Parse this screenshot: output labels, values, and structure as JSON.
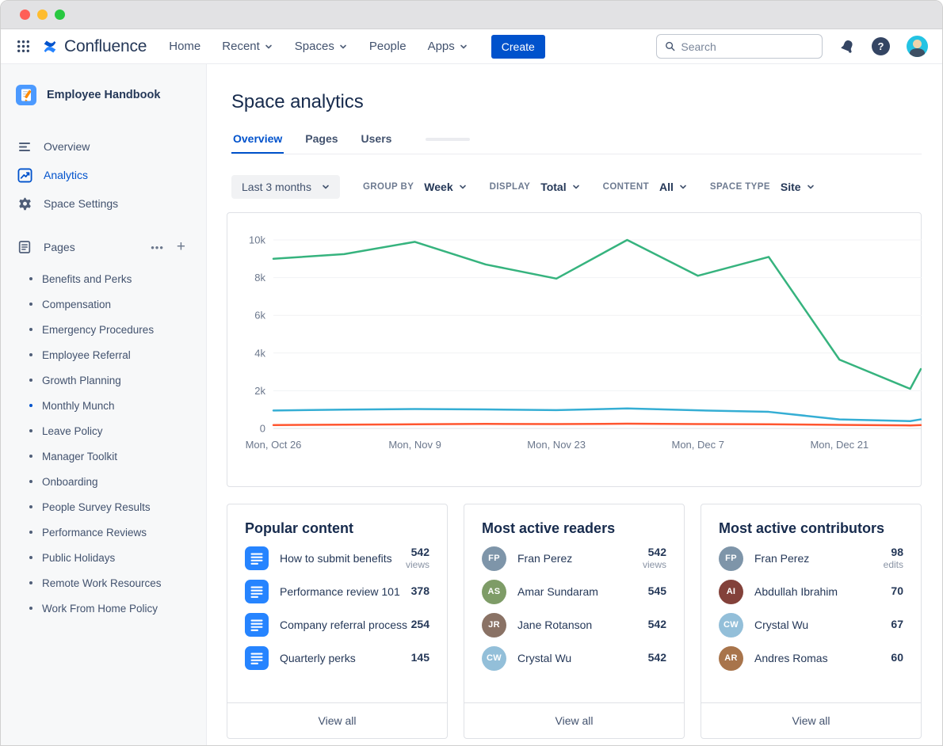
{
  "window": {
    "traffic_light_colors": [
      "#FF5F57",
      "#FEBC2E",
      "#28C840"
    ]
  },
  "nav": {
    "brand": "Confluence",
    "items": [
      {
        "label": "Home"
      },
      {
        "label": "Recent"
      },
      {
        "label": "Spaces"
      },
      {
        "label": "People"
      },
      {
        "label": "Apps"
      }
    ],
    "create_label": "Create",
    "search": {
      "placeholder": "Search"
    },
    "accent_color": "#0052CC"
  },
  "sidebar": {
    "space_name": "Employee Handbook",
    "menu": [
      {
        "label": "Overview",
        "active": false
      },
      {
        "label": "Analytics",
        "active": true
      },
      {
        "label": "Space Settings",
        "active": false
      }
    ],
    "pages_header": "Pages",
    "pages": [
      {
        "label": "Benefits and Perks",
        "bullet_color": "#505F79"
      },
      {
        "label": "Compensation",
        "bullet_color": "#505F79"
      },
      {
        "label": "Emergency Procedures",
        "bullet_color": "#505F79"
      },
      {
        "label": "Employee Referral",
        "bullet_color": "#505F79"
      },
      {
        "label": "Growth Planning",
        "bullet_color": "#505F79"
      },
      {
        "label": "Monthly Munch",
        "bullet_color": "#0052CC"
      },
      {
        "label": "Leave Policy",
        "bullet_color": "#505F79"
      },
      {
        "label": "Manager Toolkit",
        "bullet_color": "#505F79"
      },
      {
        "label": "Onboarding",
        "bullet_color": "#505F79"
      },
      {
        "label": "People Survey Results",
        "bullet_color": "#505F79"
      },
      {
        "label": "Performance Reviews",
        "bullet_color": "#505F79"
      },
      {
        "label": "Public Holidays",
        "bullet_color": "#505F79"
      },
      {
        "label": "Remote Work Resources",
        "bullet_color": "#505F79"
      },
      {
        "label": "Work From Home Policy",
        "bullet_color": "#505F79"
      }
    ]
  },
  "main": {
    "title": "Space analytics",
    "tabs": [
      {
        "label": "Overview",
        "active": true
      },
      {
        "label": "Pages",
        "active": false
      },
      {
        "label": "Users",
        "active": false
      }
    ],
    "filters": {
      "date_range": "Last 3 months",
      "controls": [
        {
          "label": "GROUP BY",
          "value": "Week"
        },
        {
          "label": "DISPLAY",
          "value": "Total"
        },
        {
          "label": "CONTENT",
          "value": "All"
        },
        {
          "label": "SPACE TYPE",
          "value": "Site"
        }
      ]
    }
  },
  "chart_data": {
    "type": "line",
    "title": "",
    "grid": true,
    "legend_position": "none",
    "ylim": [
      0,
      10000
    ],
    "y_tick_values": [
      0,
      2000,
      4000,
      6000,
      8000,
      10000
    ],
    "y_tick_labels": [
      "0",
      "2k",
      "4k",
      "6k",
      "8k",
      "10k"
    ],
    "x_tick_labels": [
      "Mon, Oct 26",
      "Mon, Nov 9",
      "Mon, Nov 23",
      "Mon, Dec 7",
      "Mon, Dec 21"
    ],
    "x_tick_week_positions": [
      0,
      2,
      4,
      6,
      8
    ],
    "x_week_positions": [
      0,
      1,
      2,
      3,
      4,
      5,
      6,
      7,
      8,
      9,
      9.15
    ],
    "series": [
      {
        "color_name": "green",
        "color": "#36B37E",
        "values": [
          9000,
          9250,
          9900,
          8700,
          7950,
          10000,
          8100,
          9100,
          3650,
          2100,
          3150
        ]
      },
      {
        "color_name": "blue",
        "color": "#35AED4",
        "values": [
          950,
          1000,
          1030,
          1010,
          970,
          1060,
          960,
          880,
          480,
          390,
          480
        ]
      },
      {
        "color_name": "red",
        "color": "#FF5630",
        "values": [
          180,
          200,
          220,
          240,
          230,
          250,
          230,
          220,
          190,
          160,
          180
        ]
      }
    ]
  },
  "cards": [
    {
      "title": "Popular content",
      "footer": "View all",
      "items": [
        {
          "name": "How to submit benefits",
          "value": "542",
          "unit": "views"
        },
        {
          "name": "Performance review 101",
          "value": "378"
        },
        {
          "name": "Company referral process",
          "value": "254"
        },
        {
          "name": "Quarterly perks",
          "value": "145"
        }
      ]
    },
    {
      "title": "Most active readers",
      "footer": "View all",
      "items": [
        {
          "name": "Fran Perez",
          "value": "542",
          "unit": "views",
          "initials": "FP",
          "avatar_color": "#7E95A9"
        },
        {
          "name": "Amar Sundaram",
          "value": "545",
          "initials": "AS",
          "avatar_color": "#7E9C67"
        },
        {
          "name": "Jane Rotanson",
          "value": "542",
          "initials": "JR",
          "avatar_color": "#8A7265"
        },
        {
          "name": "Crystal Wu",
          "value": "542",
          "initials": "CW",
          "avatar_color": "#93BFD9"
        }
      ]
    },
    {
      "title": "Most active contributors",
      "footer": "View all",
      "items": [
        {
          "name": "Fran Perez",
          "value": "98",
          "unit": "edits",
          "initials": "FP",
          "avatar_color": "#7E95A9"
        },
        {
          "name": "Abdullah Ibrahim",
          "value": "70",
          "initials": "AI",
          "avatar_color": "#83413A"
        },
        {
          "name": "Crystal Wu",
          "value": "67",
          "initials": "CW",
          "avatar_color": "#93BFD9"
        },
        {
          "name": "Andres Romas",
          "value": "60",
          "initials": "AR",
          "avatar_color": "#A8744B"
        }
      ]
    }
  ]
}
